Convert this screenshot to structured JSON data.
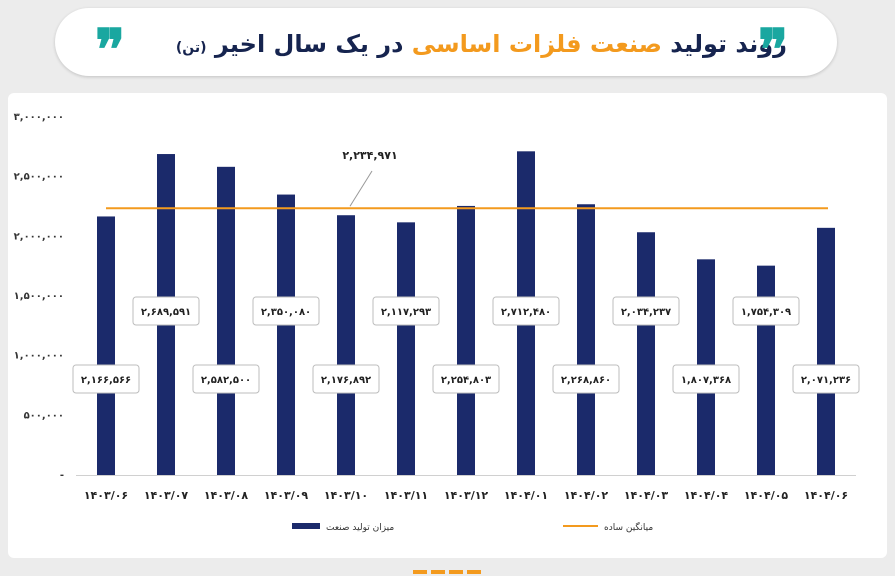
{
  "header": {
    "title_part1": "روند تولید",
    "title_highlight": "صنعت فلزات اساسی",
    "title_part2": "در یک سال اخیر",
    "title_unit": "(تن)",
    "quote_glyph": "❞"
  },
  "chart_data": {
    "type": "bar",
    "categories": [
      "۱۴۰۳/۰۶",
      "۱۴۰۳/۰۷",
      "۱۴۰۳/۰۸",
      "۱۴۰۳/۰۹",
      "۱۴۰۳/۱۰",
      "۱۴۰۳/۱۱",
      "۱۴۰۳/۱۲",
      "۱۴۰۴/۰۱",
      "۱۴۰۴/۰۲",
      "۱۴۰۴/۰۳",
      "۱۴۰۴/۰۴",
      "۱۴۰۴/۰۵",
      "۱۴۰۴/۰۶"
    ],
    "series": [
      {
        "name": "میزان تولید صنعت",
        "color": "#1b2a6b",
        "values": [
          2166566,
          2689591,
          2582500,
          2350080,
          2176892,
          2117293,
          2254803,
          2712480,
          2268860,
          2034237,
          1807368,
          1754309,
          2071236
        ],
        "labels": [
          "۲,۱۶۶,۵۶۶",
          "۲,۶۸۹,۵۹۱",
          "۲,۵۸۲,۵۰۰",
          "۲,۳۵۰,۰۸۰",
          "۲,۱۷۶,۸۹۲",
          "۲,۱۱۷,۲۹۳",
          "۲,۲۵۴,۸۰۳",
          "۲,۷۱۲,۴۸۰",
          "۲,۲۶۸,۸۶۰",
          "۲,۰۳۴,۲۳۷",
          "۱,۸۰۷,۳۶۸",
          "۱,۷۵۴,۳۰۹",
          "۲,۰۷۱,۲۳۶"
        ]
      }
    ],
    "average": {
      "name": "میانگین ساده",
      "value": 2234971,
      "label": "۲,۲۳۴,۹۷۱",
      "color": "#f39a1e"
    },
    "y_ticks": [
      0,
      500000,
      1000000,
      1500000,
      2000000,
      2500000,
      3000000
    ],
    "y_tick_labels": [
      "-",
      "۵۰۰,۰۰۰",
      "۱,۰۰۰,۰۰۰",
      "۱,۵۰۰,۰۰۰",
      "۲,۰۰۰,۰۰۰",
      "۲,۵۰۰,۰۰۰",
      "۳,۰۰۰,۰۰۰"
    ],
    "ylim": [
      0,
      3000000
    ],
    "grid": false,
    "legend_position": "bottom"
  }
}
